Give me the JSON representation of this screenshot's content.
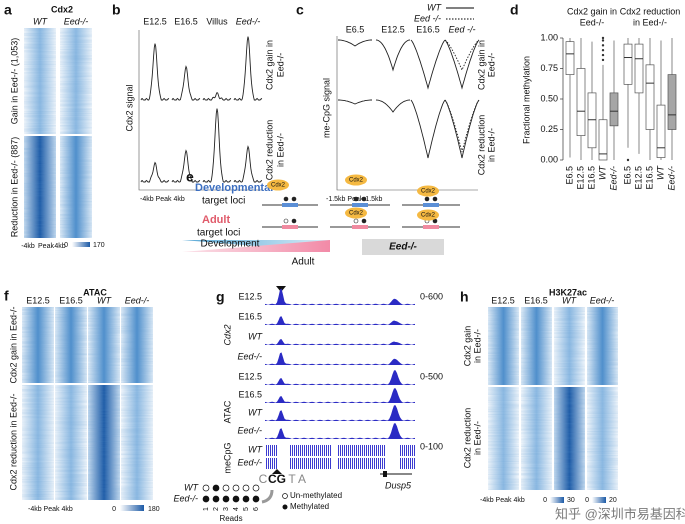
{
  "watermark": "知乎 @深圳市易基因科技",
  "panels": {
    "a": {
      "label": "a",
      "title": "Cdx2",
      "columns": [
        "WT",
        "Eed-/-"
      ],
      "rows": [
        "Gain in Eed-/- (1,053)",
        "Reduction in Eed-/- (887)"
      ],
      "axis": [
        "-4kb",
        "Peak",
        "4kb"
      ],
      "colorbar": [
        "0",
        "170"
      ]
    },
    "b": {
      "label": "b",
      "columns": [
        "E12.5",
        "E16.5",
        "Villus",
        "Eed-/-"
      ],
      "ylabel": "Cdx2 signal",
      "rows": [
        [
          "Cdx2 gain in",
          "Eed-/-"
        ],
        [
          "Cdx2 reduction",
          "in Eed-/-"
        ]
      ],
      "axis": "-4kb Peak 4kb"
    },
    "c": {
      "label": "c",
      "columns": [
        "E6.5",
        "E12.5",
        "E16.5",
        "Eed -/-"
      ],
      "legend": [
        "WT",
        "Eed -/-"
      ],
      "ylabel": "me-CpG signal",
      "rows": [
        [
          "Cdx2 gain in",
          "Eed-/-"
        ],
        [
          "Cdx2 reduction",
          "in Eed-/-"
        ]
      ],
      "axis": "-1.5kb Peak 1.5kb"
    },
    "d": {
      "label": "d",
      "type": "boxplot",
      "ylabel": "Fractional methylation",
      "ylim": [
        0,
        1
      ],
      "yticks": [
        {
          "value": 0,
          "label": "0.00"
        },
        {
          "value": 0.25,
          "label": "0.25"
        },
        {
          "value": 0.5,
          "label": "0.50"
        },
        {
          "value": 0.75,
          "label": "0.75"
        },
        {
          "value": 1,
          "label": "1.00"
        }
      ],
      "box_colors": [
        "#ffffff",
        "#ffffff",
        "#ffffff",
        "#ffffff",
        "#a6a6a6"
      ],
      "groups": [
        {
          "title": [
            "Cdx2 gain in",
            "Eed-/-"
          ],
          "categories": [
            "E6.5",
            "E12.5",
            "E16.5",
            "WT",
            "Eed-/-"
          ],
          "boxes": [
            {
              "min": 0.02,
              "q1": 0.7,
              "median": 0.87,
              "q3": 0.97,
              "max": 1.0,
              "outliers": []
            },
            {
              "min": 0,
              "q1": 0.2,
              "median": 0.4,
              "q3": 0.75,
              "max": 1.0,
              "outliers": []
            },
            {
              "min": 0,
              "q1": 0.1,
              "median": 0.33,
              "q3": 0.55,
              "max": 0.97,
              "outliers": []
            },
            {
              "min": 0,
              "q1": 0.0,
              "median": 0.05,
              "q3": 0.33,
              "max": 0.78,
              "outliers": [
                0.82,
                0.86,
                0.9,
                0.94,
                0.98,
                1.0
              ]
            },
            {
              "min": 0,
              "q1": 0.28,
              "median": 0.4,
              "q3": 0.55,
              "max": 0.98,
              "outliers": []
            }
          ]
        },
        {
          "title": [
            "Cdx2 reduction",
            "in Eed-/-"
          ],
          "categories": [
            "E6.5",
            "E12.5",
            "E16.5",
            "WT",
            "Eed-/-"
          ],
          "boxes": [
            {
              "min": 0.1,
              "q1": 0.62,
              "median": 0.84,
              "q3": 0.95,
              "max": 1.0,
              "outliers": [
                0.0
              ]
            },
            {
              "min": 0.05,
              "q1": 0.55,
              "median": 0.83,
              "q3": 0.95,
              "max": 1.0,
              "outliers": []
            },
            {
              "min": 0,
              "q1": 0.25,
              "median": 0.63,
              "q3": 0.78,
              "max": 1.0,
              "outliers": []
            },
            {
              "min": 0,
              "q1": 0.02,
              "median": 0.1,
              "q3": 0.45,
              "max": 0.98,
              "outliers": []
            },
            {
              "min": 0,
              "q1": 0.25,
              "median": 0.37,
              "q3": 0.7,
              "max": 1.0,
              "outliers": []
            }
          ]
        }
      ]
    },
    "e": {
      "label": "e",
      "developmental": [
        "Developmental",
        "target loci"
      ],
      "adult": [
        "Adult",
        "target loci"
      ],
      "chips": [
        "Cdx2",
        "Cdx2",
        "Cdx2",
        "Cdx2",
        "Cdx2"
      ],
      "development": "Development",
      "adult_arrow": "Adult",
      "eed": "Eed-/-"
    },
    "f": {
      "label": "f",
      "title": "ATAC",
      "columns": [
        "E12.5",
        "E16.5",
        "WT",
        "Eed-/-"
      ],
      "rows": [
        "Cdx2 gain in Eed-/-",
        "Cdx2 reduction in Eed-/-"
      ],
      "axis": "-4kb Peak 4kb",
      "colorbar": [
        "0",
        "180"
      ]
    },
    "g": {
      "label": "g",
      "groups": [
        {
          "name": "Cdx2",
          "range": "0-600",
          "tracks": [
            "E12.5",
            "E16.5",
            "WT",
            "Eed-/-"
          ]
        },
        {
          "name": "ATAC",
          "range": "0-500",
          "tracks": [
            "E12.5",
            "E16.5",
            "WT",
            "Eed-/-"
          ]
        },
        {
          "name": "meCpG",
          "range": "0-100",
          "tracks": [
            "WT",
            "Eed-/-"
          ]
        }
      ],
      "gene": "Dusp5",
      "sequence": [
        "C",
        "CG",
        "T",
        "A"
      ],
      "reads": {
        "rows": [
          "WT",
          "Eed-/-"
        ],
        "methylated": [
          [
            false,
            true,
            false,
            false,
            false,
            false
          ],
          [
            true,
            true,
            true,
            true,
            true,
            true
          ]
        ],
        "numbers": [
          1,
          2,
          3,
          4,
          5,
          6
        ],
        "label": "Reads",
        "legend": [
          "Un-methylated",
          "Methylated"
        ]
      }
    },
    "h": {
      "label": "h",
      "title": "H3K27ac",
      "columns": [
        "E12.5",
        "E16.5",
        "WT",
        "Eed-/-"
      ],
      "rows": [
        [
          "Cdx2 gain",
          "in Eed-/-"
        ],
        [
          "Cdx2 reduction",
          "in Eed-/-"
        ]
      ],
      "axis": "-4kb Peak 4kb",
      "colorbar": [
        "0",
        "30",
        "0",
        "20"
      ]
    }
  }
}
